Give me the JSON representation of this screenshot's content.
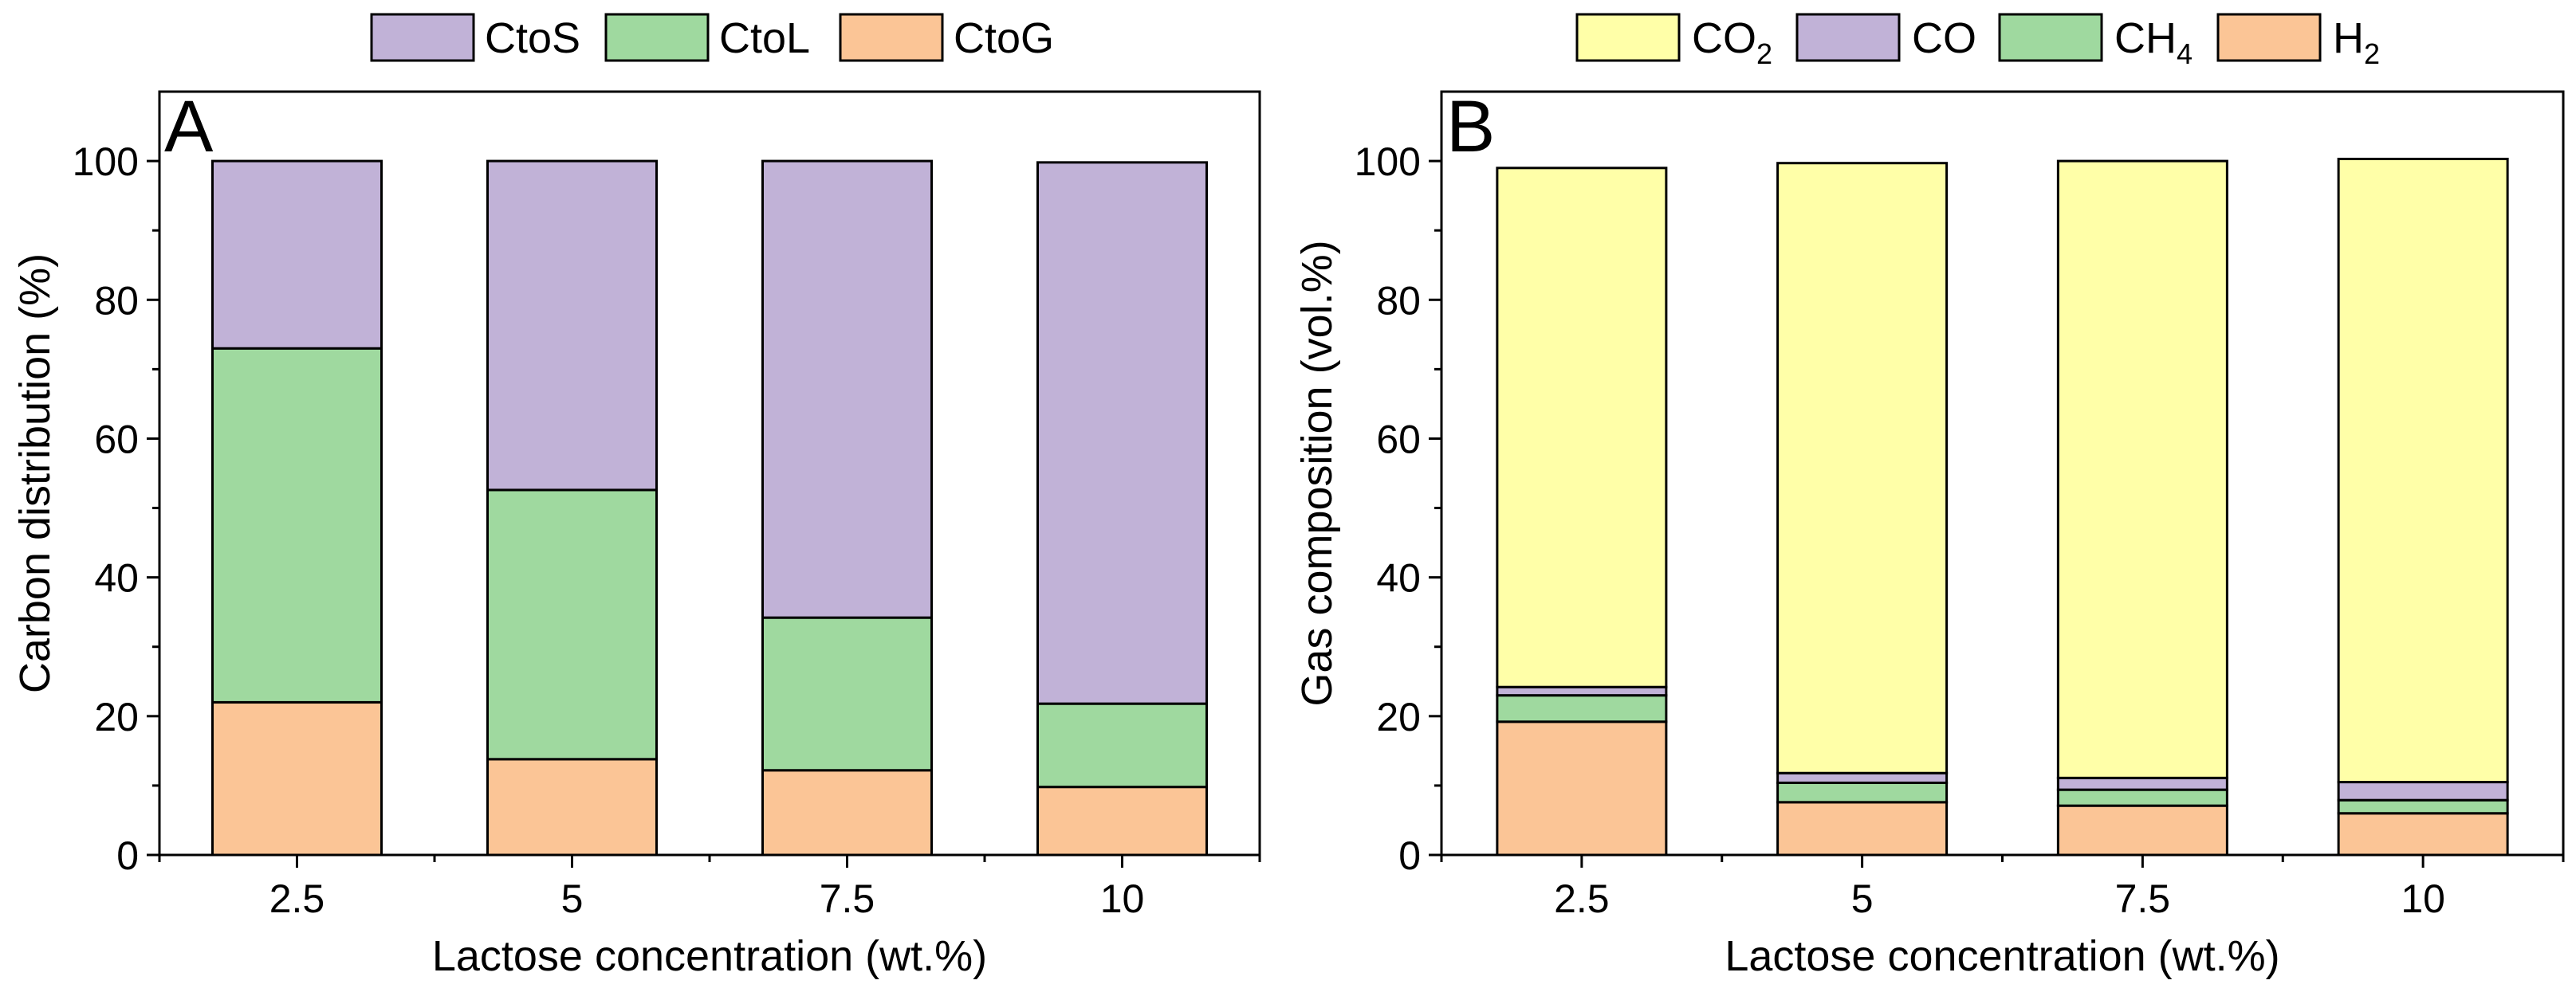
{
  "chart_data": [
    {
      "type": "bar",
      "stacked": true,
      "panel_label": "A",
      "categories": [
        "2.5",
        "5",
        "7.5",
        "10"
      ],
      "series": [
        {
          "name": "CtoG",
          "values": [
            22,
            13.8,
            12.2,
            9.8
          ],
          "color": "#fbc596"
        },
        {
          "name": "CtoL",
          "values": [
            51,
            38.8,
            22.0,
            12.0
          ],
          "color": "#9fd99f"
        },
        {
          "name": "CtoS",
          "values": [
            27,
            47.4,
            65.8,
            78.0
          ],
          "color": "#c1b2d7"
        }
      ],
      "legend": [
        {
          "label": "CtoS",
          "color": "#c1b2d7"
        },
        {
          "label": "CtoL",
          "color": "#9fd99f"
        },
        {
          "label": "CtoG",
          "color": "#fbc596"
        }
      ],
      "xlabel": "Lactose concentration (wt.%)",
      "ylabel": "Carbon distribution (%)",
      "ylim": [
        0,
        110
      ],
      "yticks": [
        "0",
        "20",
        "40",
        "60",
        "80",
        "100"
      ],
      "grid": false,
      "legend_position": "top"
    },
    {
      "type": "bar",
      "stacked": true,
      "panel_label": "B",
      "categories": [
        "2.5",
        "5",
        "7.5",
        "10"
      ],
      "series": [
        {
          "name": "H2",
          "values": [
            19.2,
            7.6,
            7.1,
            6.0
          ],
          "color": "#fbc596"
        },
        {
          "name": "CH4",
          "values": [
            3.8,
            2.8,
            2.3,
            1.9
          ],
          "color": "#9fd99f"
        },
        {
          "name": "CO",
          "values": [
            1.2,
            1.4,
            1.7,
            2.6
          ],
          "color": "#c1b2d7"
        },
        {
          "name": "CO2",
          "values": [
            74.8,
            87.9,
            88.9,
            89.8
          ],
          "color": "#ffffa8"
        }
      ],
      "legend": [
        {
          "label": "CO",
          "sub": "2",
          "color": "#ffffa8"
        },
        {
          "label": "CO",
          "sub": "",
          "color": "#c1b2d7"
        },
        {
          "label": "CH",
          "sub": "4",
          "color": "#9fd99f"
        },
        {
          "label": "H",
          "sub": "2",
          "color": "#fbc596"
        }
      ],
      "xlabel": "Lactose concentration (wt.%)",
      "ylabel": "Gas composition (vol.%)",
      "ylim": [
        0,
        110
      ],
      "yticks": [
        "0",
        "20",
        "40",
        "60",
        "80",
        "100"
      ],
      "grid": false,
      "legend_position": "top"
    }
  ]
}
